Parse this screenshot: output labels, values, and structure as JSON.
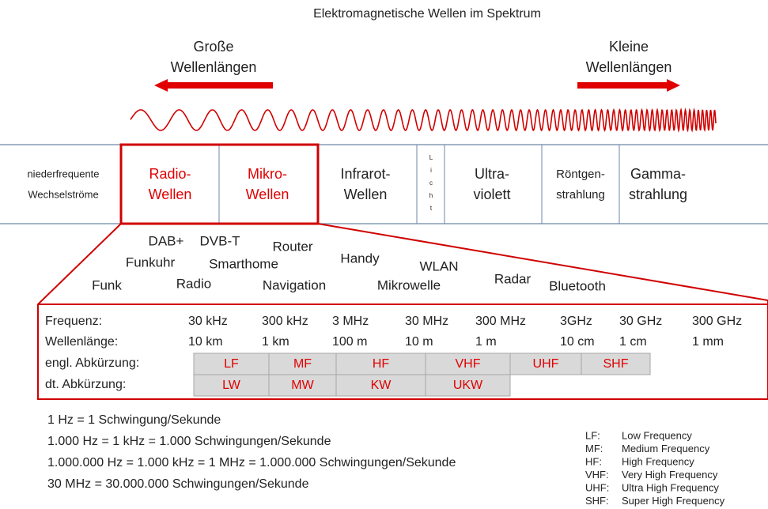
{
  "title": "Elektromagnetische Wellen im Spektrum",
  "left": {
    "line1": "Große",
    "line2": "Wellenlängen"
  },
  "right": {
    "line1": "Kleine",
    "line2": "Wellenlängen"
  },
  "spectrum": [
    {
      "line1": "niederfrequente",
      "line2": "Wechselströme"
    },
    {
      "line1": "Radio-",
      "line2": "Wellen"
    },
    {
      "line1": "Mikro-",
      "line2": "Wellen"
    },
    {
      "line1": "Infrarot-",
      "line2": "Wellen"
    },
    {
      "letters": [
        "L",
        "i",
        "c",
        "h",
        "t"
      ]
    },
    {
      "line1": "Ultra-",
      "line2": "violett"
    },
    {
      "line1": "Röntgen-",
      "line2": "strahlung"
    },
    {
      "line1": "Gamma-",
      "line2": "strahlung"
    }
  ],
  "applications": [
    "DAB+",
    "DVB-T",
    "Router",
    "Funkuhr",
    "Smarthome",
    "Handy",
    "WLAN",
    "Funk",
    "Radio",
    "Navigation",
    "Mikrowelle",
    "Radar",
    "Bluetooth"
  ],
  "table": {
    "rows": [
      {
        "label": "Frequenz:",
        "values": [
          "30 kHz",
          "300 kHz",
          "3 MHz",
          "30 MHz",
          "300 MHz",
          "3GHz",
          "30 GHz",
          "300 GHz"
        ]
      },
      {
        "label": "Wellenlänge:",
        "values": [
          "10 km",
          "1 km",
          "100 m",
          "10 m",
          "1 m",
          "10 cm",
          "1 cm",
          "1 mm"
        ]
      }
    ]
  },
  "bands": {
    "engl": {
      "label": "engl. Abkürzung:",
      "values": [
        "LF",
        "MF",
        "HF",
        "VHF",
        "UHF",
        "SHF"
      ]
    },
    "dt": {
      "label": "dt. Abkürzung:",
      "values": [
        "LW",
        "MW",
        "KW",
        "UKW"
      ]
    }
  },
  "equations": [
    "1 Hz = 1 Schwingung/Sekunde",
    "1.000 Hz = 1 kHz = 1.000 Schwingungen/Sekunde",
    "1.000.000 Hz = 1.000 kHz = 1 MHz = 1.000.000 Schwingungen/Sekunde",
    "30 MHz = 30.000.000 Schwingungen/Sekunde"
  ],
  "legend": [
    {
      "abbr": "LF:",
      "name": "Low Frequency"
    },
    {
      "abbr": "MF:",
      "name": "Medium Frequency"
    },
    {
      "abbr": "HF:",
      "name": "High Frequency"
    },
    {
      "abbr": "VHF:",
      "name": "Very High Frequency"
    },
    {
      "abbr": "UHF:",
      "name": "Ultra High Frequency"
    },
    {
      "abbr": "SHF:",
      "name": "Super High Frequency"
    }
  ]
}
